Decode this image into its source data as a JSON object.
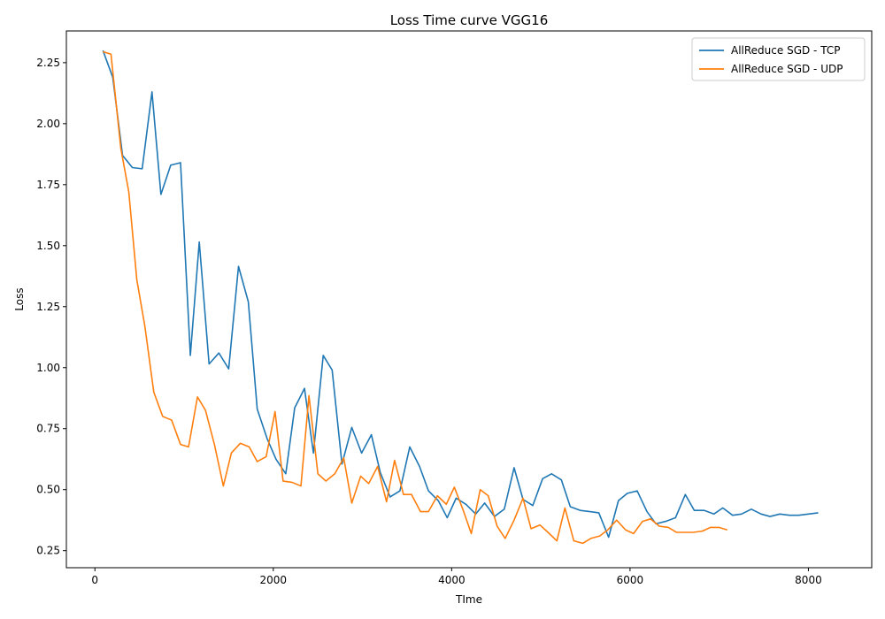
{
  "chart_data": {
    "type": "line",
    "title": "Loss Time curve VGG16",
    "xlabel": "TIme",
    "ylabel": "Loss",
    "xlim": [
      -320,
      8710
    ],
    "ylim": [
      0.18,
      2.38
    ],
    "x_ticks": [
      0,
      2000,
      4000,
      6000,
      8000
    ],
    "x_tick_labels": [
      "0",
      "2000",
      "4000",
      "6000",
      "8000"
    ],
    "y_ticks": [
      0.25,
      0.5,
      0.75,
      1.0,
      1.25,
      1.5,
      1.75,
      2.0,
      2.25
    ],
    "y_tick_labels": [
      "0.25",
      "0.50",
      "0.75",
      "1.00",
      "1.25",
      "1.50",
      "1.75",
      "2.00",
      "2.25"
    ],
    "grid": false,
    "legend_position": "top-right",
    "series": [
      {
        "name": "AllReduce SGD - TCP",
        "color": "#1f77b4",
        "points": [
          [
            90,
            2.3
          ],
          [
            200,
            2.19
          ],
          [
            310,
            1.87
          ],
          [
            420,
            1.82
          ],
          [
            530,
            1.815
          ],
          [
            640,
            2.13
          ],
          [
            740,
            1.71
          ],
          [
            850,
            1.83
          ],
          [
            960,
            1.84
          ],
          [
            1070,
            1.05
          ],
          [
            1170,
            1.515
          ],
          [
            1280,
            1.015
          ],
          [
            1390,
            1.06
          ],
          [
            1500,
            0.995
          ],
          [
            1610,
            1.415
          ],
          [
            1720,
            1.27
          ],
          [
            1820,
            0.83
          ],
          [
            1930,
            0.71
          ],
          [
            2030,
            0.625
          ],
          [
            2140,
            0.565
          ],
          [
            2240,
            0.835
          ],
          [
            2350,
            0.915
          ],
          [
            2450,
            0.65
          ],
          [
            2560,
            1.05
          ],
          [
            2660,
            0.99
          ],
          [
            2770,
            0.605
          ],
          [
            2880,
            0.755
          ],
          [
            2990,
            0.65
          ],
          [
            3100,
            0.725
          ],
          [
            3200,
            0.57
          ],
          [
            3310,
            0.47
          ],
          [
            3420,
            0.495
          ],
          [
            3530,
            0.675
          ],
          [
            3640,
            0.595
          ],
          [
            3740,
            0.495
          ],
          [
            3850,
            0.455
          ],
          [
            3950,
            0.385
          ],
          [
            4050,
            0.465
          ],
          [
            4160,
            0.44
          ],
          [
            4270,
            0.4
          ],
          [
            4370,
            0.445
          ],
          [
            4480,
            0.39
          ],
          [
            4590,
            0.42
          ],
          [
            4700,
            0.59
          ],
          [
            4800,
            0.46
          ],
          [
            4910,
            0.435
          ],
          [
            5020,
            0.545
          ],
          [
            5120,
            0.565
          ],
          [
            5230,
            0.54
          ],
          [
            5330,
            0.43
          ],
          [
            5440,
            0.415
          ],
          [
            5550,
            0.41
          ],
          [
            5650,
            0.405
          ],
          [
            5760,
            0.305
          ],
          [
            5870,
            0.455
          ],
          [
            5970,
            0.485
          ],
          [
            6080,
            0.495
          ],
          [
            6190,
            0.41
          ],
          [
            6290,
            0.36
          ],
          [
            6400,
            0.37
          ],
          [
            6510,
            0.385
          ],
          [
            6620,
            0.48
          ],
          [
            6720,
            0.415
          ],
          [
            6830,
            0.415
          ],
          [
            6940,
            0.4
          ],
          [
            7040,
            0.425
          ],
          [
            7150,
            0.395
          ],
          [
            7250,
            0.4
          ],
          [
            7360,
            0.42
          ],
          [
            7470,
            0.4
          ],
          [
            7570,
            0.39
          ],
          [
            7680,
            0.4
          ],
          [
            7790,
            0.395
          ],
          [
            7890,
            0.395
          ],
          [
            8000,
            0.4
          ],
          [
            8110,
            0.405
          ]
        ]
      },
      {
        "name": "AllReduce SGD - UDP",
        "color": "#ff7f0e",
        "points": [
          [
            90,
            2.295
          ],
          [
            180,
            2.285
          ],
          [
            290,
            1.9
          ],
          [
            380,
            1.72
          ],
          [
            470,
            1.36
          ],
          [
            560,
            1.17
          ],
          [
            660,
            0.9
          ],
          [
            760,
            0.8
          ],
          [
            860,
            0.785
          ],
          [
            960,
            0.685
          ],
          [
            1050,
            0.675
          ],
          [
            1150,
            0.88
          ],
          [
            1240,
            0.825
          ],
          [
            1340,
            0.685
          ],
          [
            1440,
            0.515
          ],
          [
            1530,
            0.65
          ],
          [
            1630,
            0.69
          ],
          [
            1730,
            0.675
          ],
          [
            1820,
            0.615
          ],
          [
            1920,
            0.635
          ],
          [
            2020,
            0.82
          ],
          [
            2110,
            0.535
          ],
          [
            2210,
            0.53
          ],
          [
            2310,
            0.515
          ],
          [
            2400,
            0.885
          ],
          [
            2500,
            0.565
          ],
          [
            2590,
            0.535
          ],
          [
            2690,
            0.565
          ],
          [
            2790,
            0.63
          ],
          [
            2880,
            0.445
          ],
          [
            2980,
            0.555
          ],
          [
            3070,
            0.525
          ],
          [
            3170,
            0.595
          ],
          [
            3270,
            0.45
          ],
          [
            3360,
            0.62
          ],
          [
            3460,
            0.48
          ],
          [
            3550,
            0.48
          ],
          [
            3650,
            0.41
          ],
          [
            3740,
            0.41
          ],
          [
            3840,
            0.475
          ],
          [
            3940,
            0.44
          ],
          [
            4030,
            0.51
          ],
          [
            4130,
            0.415
          ],
          [
            4220,
            0.32
          ],
          [
            4320,
            0.5
          ],
          [
            4410,
            0.475
          ],
          [
            4510,
            0.35
          ],
          [
            4600,
            0.3
          ],
          [
            4700,
            0.375
          ],
          [
            4800,
            0.465
          ],
          [
            4890,
            0.34
          ],
          [
            4990,
            0.355
          ],
          [
            5080,
            0.325
          ],
          [
            5180,
            0.29
          ],
          [
            5270,
            0.425
          ],
          [
            5370,
            0.29
          ],
          [
            5470,
            0.28
          ],
          [
            5560,
            0.3
          ],
          [
            5660,
            0.31
          ],
          [
            5750,
            0.335
          ],
          [
            5850,
            0.375
          ],
          [
            5950,
            0.335
          ],
          [
            6040,
            0.32
          ],
          [
            6140,
            0.37
          ],
          [
            6230,
            0.38
          ],
          [
            6330,
            0.35
          ],
          [
            6430,
            0.345
          ],
          [
            6520,
            0.325
          ],
          [
            6620,
            0.325
          ],
          [
            6710,
            0.325
          ],
          [
            6810,
            0.33
          ],
          [
            6900,
            0.345
          ],
          [
            7000,
            0.345
          ],
          [
            7090,
            0.335
          ]
        ]
      }
    ]
  }
}
